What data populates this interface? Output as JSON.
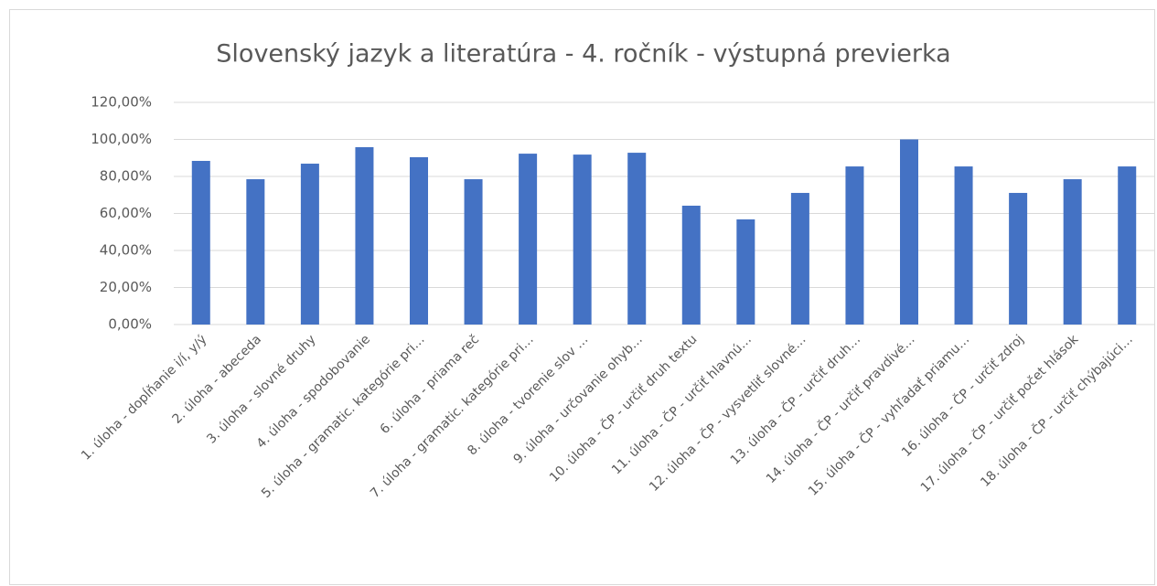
{
  "chart_data": {
    "type": "bar",
    "title": "Slovenský jazyk a literatúra - 4. ročník - výstupná previerka",
    "categories": [
      "1. úloha - dopĺňanie i/í, y/ý",
      "2. úloha - abeceda",
      "3. úloha - slovné druhy",
      "4. úloha - spodobovanie",
      "5. úloha - gramatic. kategórie pri…",
      "6. úloha - priama reč",
      "7. úloha - gramatic. kategórie pri…",
      "8. úloha - tvorenie slov …",
      "9. úloha - určovanie ohyb…",
      "10. úloha - ČP - určiť druh textu",
      "11. úloha - ČP - určiť hlavnú…",
      "12. úloha - ČP - vysvetliť slovné…",
      "13. úloha - ČP - určiť druh…",
      "14. úloha - ČP - určiť pravdivé…",
      "15. úloha - ČP - vyhľadať priamu…",
      "16. úloha - ČP - určiť zdroj",
      "17. úloha - ČP - určiť počet hlások",
      "18. úloha - ČP - určiť chýbajúci…"
    ],
    "values": [
      88.4,
      78.5,
      86.9,
      95.8,
      90.4,
      78.5,
      92.3,
      91.8,
      92.8,
      64.2,
      56.8,
      71.1,
      85.4,
      100,
      85.4,
      71.1,
      78.5,
      85.4
    ],
    "color": "#4472c4",
    "ylim": [
      0,
      120
    ],
    "yticks": [
      {
        "value": 0,
        "label": "0,00%"
      },
      {
        "value": 20,
        "label": "20,00%"
      },
      {
        "value": 40,
        "label": "40,00%"
      },
      {
        "value": 60,
        "label": "60,00%"
      },
      {
        "value": 80,
        "label": "80,00%"
      },
      {
        "value": 100,
        "label": "100,00%"
      },
      {
        "value": 120,
        "label": "120,00%"
      }
    ],
    "grid": true
  }
}
